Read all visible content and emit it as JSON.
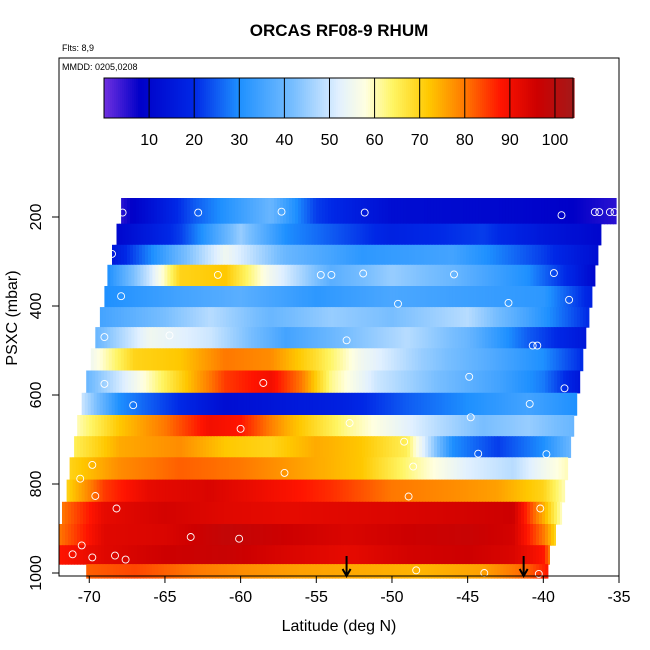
{
  "chart_data": {
    "type": "heatmap",
    "title": "ORCAS RF08-9 RHUM",
    "note_flights": "Flts: 8,9",
    "note_mmdd": "MMDD: 0205,0208",
    "xlabel": "Latitude (deg N)",
    "ylabel": "PSXC (mbar)",
    "xlim": [
      -72,
      -35
    ],
    "ylim": [
      1010,
      0
    ],
    "x_ticks": [
      -70,
      -65,
      -60,
      -55,
      -50,
      -45,
      -40,
      -35
    ],
    "y_ticks": [
      200,
      400,
      600,
      800,
      1000
    ],
    "colorbar": {
      "range": [
        0,
        104
      ],
      "ticks": [
        10,
        20,
        30,
        40,
        50,
        60,
        70,
        80,
        90,
        100
      ]
    },
    "bands": [
      {
        "p": 190,
        "lat_min": -67.9,
        "lat_max": -35.2,
        "stops": [
          [
            -67.9,
            5
          ],
          [
            -63,
            25
          ],
          [
            -58,
            40
          ],
          [
            -55,
            22
          ],
          [
            -50,
            12
          ],
          [
            -42,
            10
          ],
          [
            -38,
            8
          ],
          [
            -35.2,
            5
          ]
        ]
      },
      {
        "p": 240,
        "lat_min": -68.2,
        "lat_max": -36.2,
        "stops": [
          [
            -68.2,
            10
          ],
          [
            -64,
            22
          ],
          [
            -60,
            45
          ],
          [
            -57,
            30
          ],
          [
            -50,
            18
          ],
          [
            -44,
            22
          ],
          [
            -40,
            15
          ],
          [
            -36.2,
            10
          ]
        ]
      },
      {
        "p": 285,
        "lat_min": -68.5,
        "lat_max": -36.4,
        "stops": [
          [
            -68.5,
            15
          ],
          [
            -64,
            40
          ],
          [
            -61,
            55
          ],
          [
            -57,
            40
          ],
          [
            -52,
            32
          ],
          [
            -46,
            35
          ],
          [
            -40,
            22
          ],
          [
            -36.4,
            12
          ]
        ]
      },
      {
        "p": 330,
        "lat_min": -68.8,
        "lat_max": -36.6,
        "stops": [
          [
            -68.8,
            30
          ],
          [
            -66,
            50
          ],
          [
            -64,
            70
          ],
          [
            -61,
            72
          ],
          [
            -58,
            55
          ],
          [
            -54,
            38
          ],
          [
            -50,
            45
          ],
          [
            -46,
            40
          ],
          [
            -41,
            30
          ],
          [
            -38,
            18
          ],
          [
            -36.6,
            10
          ]
        ]
      },
      {
        "p": 380,
        "lat_min": -69.0,
        "lat_max": -36.8,
        "stops": [
          [
            -69.0,
            30
          ],
          [
            -64,
            35
          ],
          [
            -60,
            38
          ],
          [
            -55,
            32
          ],
          [
            -50,
            36
          ],
          [
            -45,
            34
          ],
          [
            -40,
            32
          ],
          [
            -36.8,
            18
          ]
        ]
      },
      {
        "p": 425,
        "lat_min": -69.3,
        "lat_max": -37.0,
        "stops": [
          [
            -69.3,
            35
          ],
          [
            -65,
            42
          ],
          [
            -62,
            48
          ],
          [
            -58,
            40
          ],
          [
            -54,
            45
          ],
          [
            -50,
            42
          ],
          [
            -45,
            48
          ],
          [
            -41,
            35
          ],
          [
            -37.0,
            20
          ]
        ]
      },
      {
        "p": 470,
        "lat_min": -69.6,
        "lat_max": -37.2,
        "stops": [
          [
            -69.6,
            40
          ],
          [
            -66,
            55
          ],
          [
            -62,
            50
          ],
          [
            -57,
            35
          ],
          [
            -53,
            42
          ],
          [
            -49,
            48
          ],
          [
            -45,
            40
          ],
          [
            -41,
            25
          ],
          [
            -37.2,
            15
          ]
        ]
      },
      {
        "p": 520,
        "lat_min": -69.9,
        "lat_max": -37.4,
        "stops": [
          [
            -69.9,
            55
          ],
          [
            -67,
            70
          ],
          [
            -64,
            72
          ],
          [
            -61,
            80
          ],
          [
            -58,
            78
          ],
          [
            -55,
            68
          ],
          [
            -52,
            55
          ],
          [
            -48,
            45
          ],
          [
            -44,
            38
          ],
          [
            -40,
            30
          ],
          [
            -37.4,
            20
          ]
        ]
      },
      {
        "p": 570,
        "lat_min": -70.2,
        "lat_max": -37.6,
        "stops": [
          [
            -70.2,
            40
          ],
          [
            -67,
            55
          ],
          [
            -64,
            70
          ],
          [
            -61,
            85
          ],
          [
            -58,
            90
          ],
          [
            -56,
            80
          ],
          [
            -54,
            62
          ],
          [
            -51,
            50
          ],
          [
            -47,
            42
          ],
          [
            -43,
            35
          ],
          [
            -40,
            28
          ],
          [
            -37.6,
            15
          ]
        ]
      },
      {
        "p": 620,
        "lat_min": -70.5,
        "lat_max": -37.8,
        "stops": [
          [
            -70.5,
            50
          ],
          [
            -68,
            30
          ],
          [
            -64,
            20
          ],
          [
            -61,
            12
          ],
          [
            -57,
            15
          ],
          [
            -53,
            18
          ],
          [
            -49,
            25
          ],
          [
            -45,
            30
          ],
          [
            -41,
            35
          ],
          [
            -37.8,
            30
          ]
        ]
      },
      {
        "p": 670,
        "lat_min": -70.8,
        "lat_max": -38.0,
        "stops": [
          [
            -70.8,
            60
          ],
          [
            -68,
            72
          ],
          [
            -65,
            80
          ],
          [
            -62,
            90
          ],
          [
            -60,
            88
          ],
          [
            -57,
            75
          ],
          [
            -53,
            62
          ],
          [
            -50,
            55
          ],
          [
            -47,
            48
          ],
          [
            -44,
            42
          ],
          [
            -41,
            45
          ],
          [
            -38.0,
            40
          ]
        ]
      },
      {
        "p": 715,
        "lat_min": -71.0,
        "lat_max": -38.2,
        "stops": [
          [
            -71.0,
            65
          ],
          [
            -68,
            75
          ],
          [
            -64,
            78
          ],
          [
            -61,
            72
          ],
          [
            -58,
            70
          ],
          [
            -55,
            75
          ],
          [
            -52,
            72
          ],
          [
            -49,
            65
          ],
          [
            -46,
            30
          ],
          [
            -43,
            22
          ],
          [
            -40,
            30
          ],
          [
            -38.2,
            40
          ]
        ]
      },
      {
        "p": 765,
        "lat_min": -71.3,
        "lat_max": -38.4,
        "stops": [
          [
            -71.3,
            70
          ],
          [
            -68,
            78
          ],
          [
            -64,
            82
          ],
          [
            -60,
            80
          ],
          [
            -56,
            76
          ],
          [
            -52,
            72
          ],
          [
            -48,
            60
          ],
          [
            -45,
            52
          ],
          [
            -42,
            48
          ],
          [
            -40,
            55
          ],
          [
            -38.4,
            60
          ]
        ]
      },
      {
        "p": 815,
        "lat_min": -71.5,
        "lat_max": -38.6,
        "stops": [
          [
            -71.5,
            70
          ],
          [
            -69,
            85
          ],
          [
            -66,
            92
          ],
          [
            -62,
            94
          ],
          [
            -58,
            90
          ],
          [
            -54,
            86
          ],
          [
            -50,
            80
          ],
          [
            -46,
            78
          ],
          [
            -43,
            76
          ],
          [
            -40,
            70
          ],
          [
            -38.6,
            60
          ]
        ]
      },
      {
        "p": 865,
        "lat_min": -71.8,
        "lat_max": -38.8,
        "stops": [
          [
            -71.8,
            80
          ],
          [
            -69,
            92
          ],
          [
            -65,
            95
          ],
          [
            -61,
            93
          ],
          [
            -57,
            92
          ],
          [
            -53,
            93
          ],
          [
            -49,
            94
          ],
          [
            -45,
            95
          ],
          [
            -42,
            96
          ],
          [
            -40,
            75
          ],
          [
            -38.8,
            60
          ]
        ]
      },
      {
        "p": 915,
        "lat_min": -72.0,
        "lat_max": -39.2,
        "stops": [
          [
            -72.0,
            80
          ],
          [
            -69,
            93
          ],
          [
            -65,
            94
          ],
          [
            -61,
            98
          ],
          [
            -57,
            96
          ],
          [
            -53,
            94
          ],
          [
            -49,
            96
          ],
          [
            -45,
            97
          ],
          [
            -42,
            95
          ],
          [
            -40,
            80
          ],
          [
            -39.2,
            70
          ]
        ]
      },
      {
        "p": 960,
        "lat_min": -72.0,
        "lat_max": -39.6,
        "stops": [
          [
            -72.0,
            88
          ],
          [
            -69,
            93
          ],
          [
            -65,
            96
          ],
          [
            -61,
            97
          ],
          [
            -57,
            94
          ],
          [
            -53,
            92
          ],
          [
            -49,
            95
          ],
          [
            -45,
            96
          ],
          [
            -42,
            94
          ],
          [
            -40,
            88
          ],
          [
            -39.6,
            80
          ]
        ]
      },
      {
        "p": 1000,
        "lat_min": -70.2,
        "lat_max": -39.7,
        "stops": [
          [
            -70.2,
            82
          ],
          [
            -67,
            84
          ],
          [
            -63,
            80
          ],
          [
            -60,
            78
          ],
          [
            -56,
            76
          ],
          [
            -52,
            75
          ],
          [
            -48,
            74
          ],
          [
            -44,
            76
          ],
          [
            -41,
            82
          ],
          [
            -39.7,
            88
          ]
        ]
      }
    ],
    "points": [
      [
        -67.8,
        190
      ],
      [
        -62.8,
        190
      ],
      [
        -57.3,
        188
      ],
      [
        -51.8,
        190
      ],
      [
        -38.8,
        196
      ],
      [
        -36.6,
        189
      ],
      [
        -36.3,
        189
      ],
      [
        -35.6,
        189
      ],
      [
        -35.3,
        189
      ],
      [
        -68.5,
        283
      ],
      [
        -61.5,
        330
      ],
      [
        -54.7,
        330
      ],
      [
        -54.0,
        330
      ],
      [
        -51.9,
        327
      ],
      [
        -45.9,
        329
      ],
      [
        -39.3,
        326
      ],
      [
        -67.9,
        378
      ],
      [
        -49.6,
        395
      ],
      [
        -42.3,
        393
      ],
      [
        -38.3,
        386
      ],
      [
        -69.0,
        470
      ],
      [
        -64.7,
        466
      ],
      [
        -53.0,
        477
      ],
      [
        -40.7,
        489
      ],
      [
        -40.4,
        489
      ],
      [
        -69.0,
        575
      ],
      [
        -58.5,
        573
      ],
      [
        -44.9,
        559
      ],
      [
        -38.6,
        585
      ],
      [
        -67.1,
        623
      ],
      [
        -40.9,
        620
      ],
      [
        -60.0,
        676
      ],
      [
        -52.8,
        663
      ],
      [
        -44.8,
        650
      ],
      [
        -49.2,
        705
      ],
      [
        -44.3,
        732
      ],
      [
        -39.8,
        733
      ],
      [
        -69.8,
        757
      ],
      [
        -57.1,
        775
      ],
      [
        -48.6,
        761
      ],
      [
        -70.6,
        788
      ],
      [
        -69.6,
        827
      ],
      [
        -68.2,
        855
      ],
      [
        -48.9,
        828
      ],
      [
        -40.2,
        855
      ],
      [
        -63.3,
        919
      ],
      [
        -60.1,
        923
      ],
      [
        -70.5,
        938
      ],
      [
        -71.1,
        958
      ],
      [
        -69.8,
        965
      ],
      [
        -68.3,
        961
      ],
      [
        -67.6,
        970
      ],
      [
        -48.4,
        994
      ],
      [
        -43.9,
        1000
      ],
      [
        -40.3,
        1002
      ]
    ],
    "arrows_lat": [
      -53.0,
      -41.3
    ]
  }
}
